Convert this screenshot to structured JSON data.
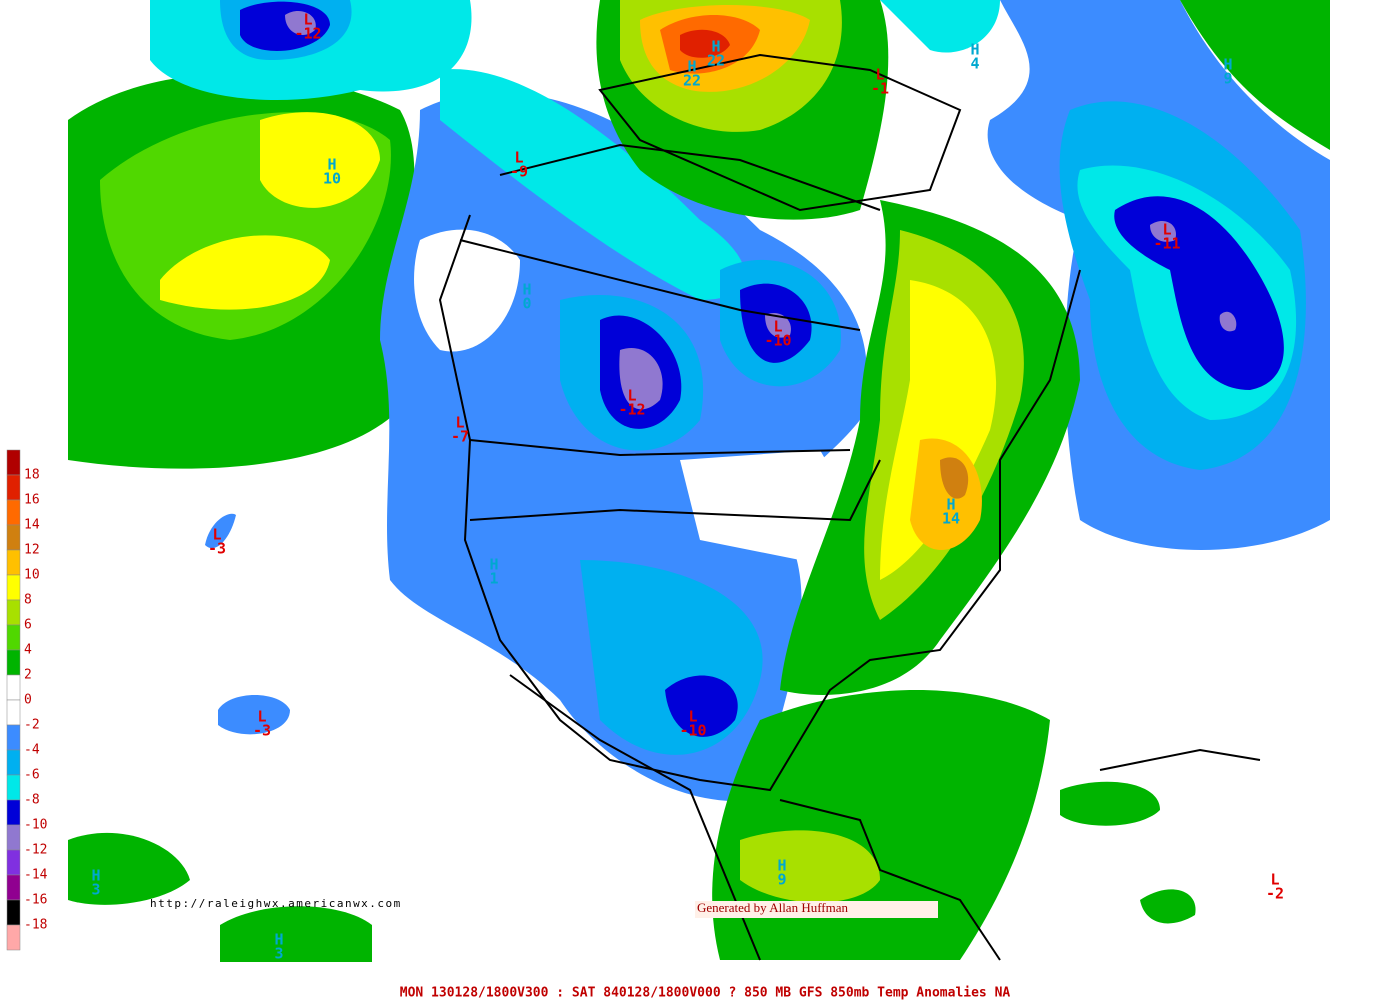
{
  "colorbar": {
    "colors": [
      "#b00000",
      "#e02000",
      "#ff6a00",
      "#d08010",
      "#ffc000",
      "#ffff00",
      "#a8e000",
      "#50d800",
      "#00b400",
      "#ffffff",
      "#ffffff",
      "#3c8cff",
      "#00b0f0",
      "#00e8e8",
      "#0000d8",
      "#9078d0",
      "#8030e0",
      "#900090",
      "#000000",
      "#ffa8a8"
    ],
    "labels": [
      18,
      16,
      14,
      12,
      10,
      8,
      6,
      4,
      2,
      0,
      -2,
      -4,
      -6,
      -8,
      -10,
      -12,
      -14,
      -16,
      -18
    ]
  },
  "markers": [
    {
      "kind": "L",
      "value": -12
    },
    {
      "kind": "H",
      "value": 22
    },
    {
      "kind": "H",
      "value": 22
    },
    {
      "kind": "L",
      "value": -1
    },
    {
      "kind": "H",
      "value": 4
    },
    {
      "kind": "H",
      "value": 9
    },
    {
      "kind": "H",
      "value": 10
    },
    {
      "kind": "L",
      "value": -9
    },
    {
      "kind": "L",
      "value": -11
    },
    {
      "kind": "H",
      "value": 0
    },
    {
      "kind": "L",
      "value": -10
    },
    {
      "kind": "L",
      "value": -12
    },
    {
      "kind": "L",
      "value": -7
    },
    {
      "kind": "L",
      "value": -3
    },
    {
      "kind": "H",
      "value": 1
    },
    {
      "kind": "H",
      "value": 14
    },
    {
      "kind": "L",
      "value": -3
    },
    {
      "kind": "L",
      "value": -10
    },
    {
      "kind": "H",
      "value": 3
    },
    {
      "kind": "H",
      "value": 9
    },
    {
      "kind": "L",
      "value": -2
    },
    {
      "kind": "H",
      "value": 3
    }
  ],
  "url": "http://raleighwx.americanwx.com",
  "credit": "Generated by Allan Huffman",
  "footer": "MON 130128/1800V300 : SAT 840128/1800V000  ? 850 MB GFS 850mb Temp Anomalies NA"
}
